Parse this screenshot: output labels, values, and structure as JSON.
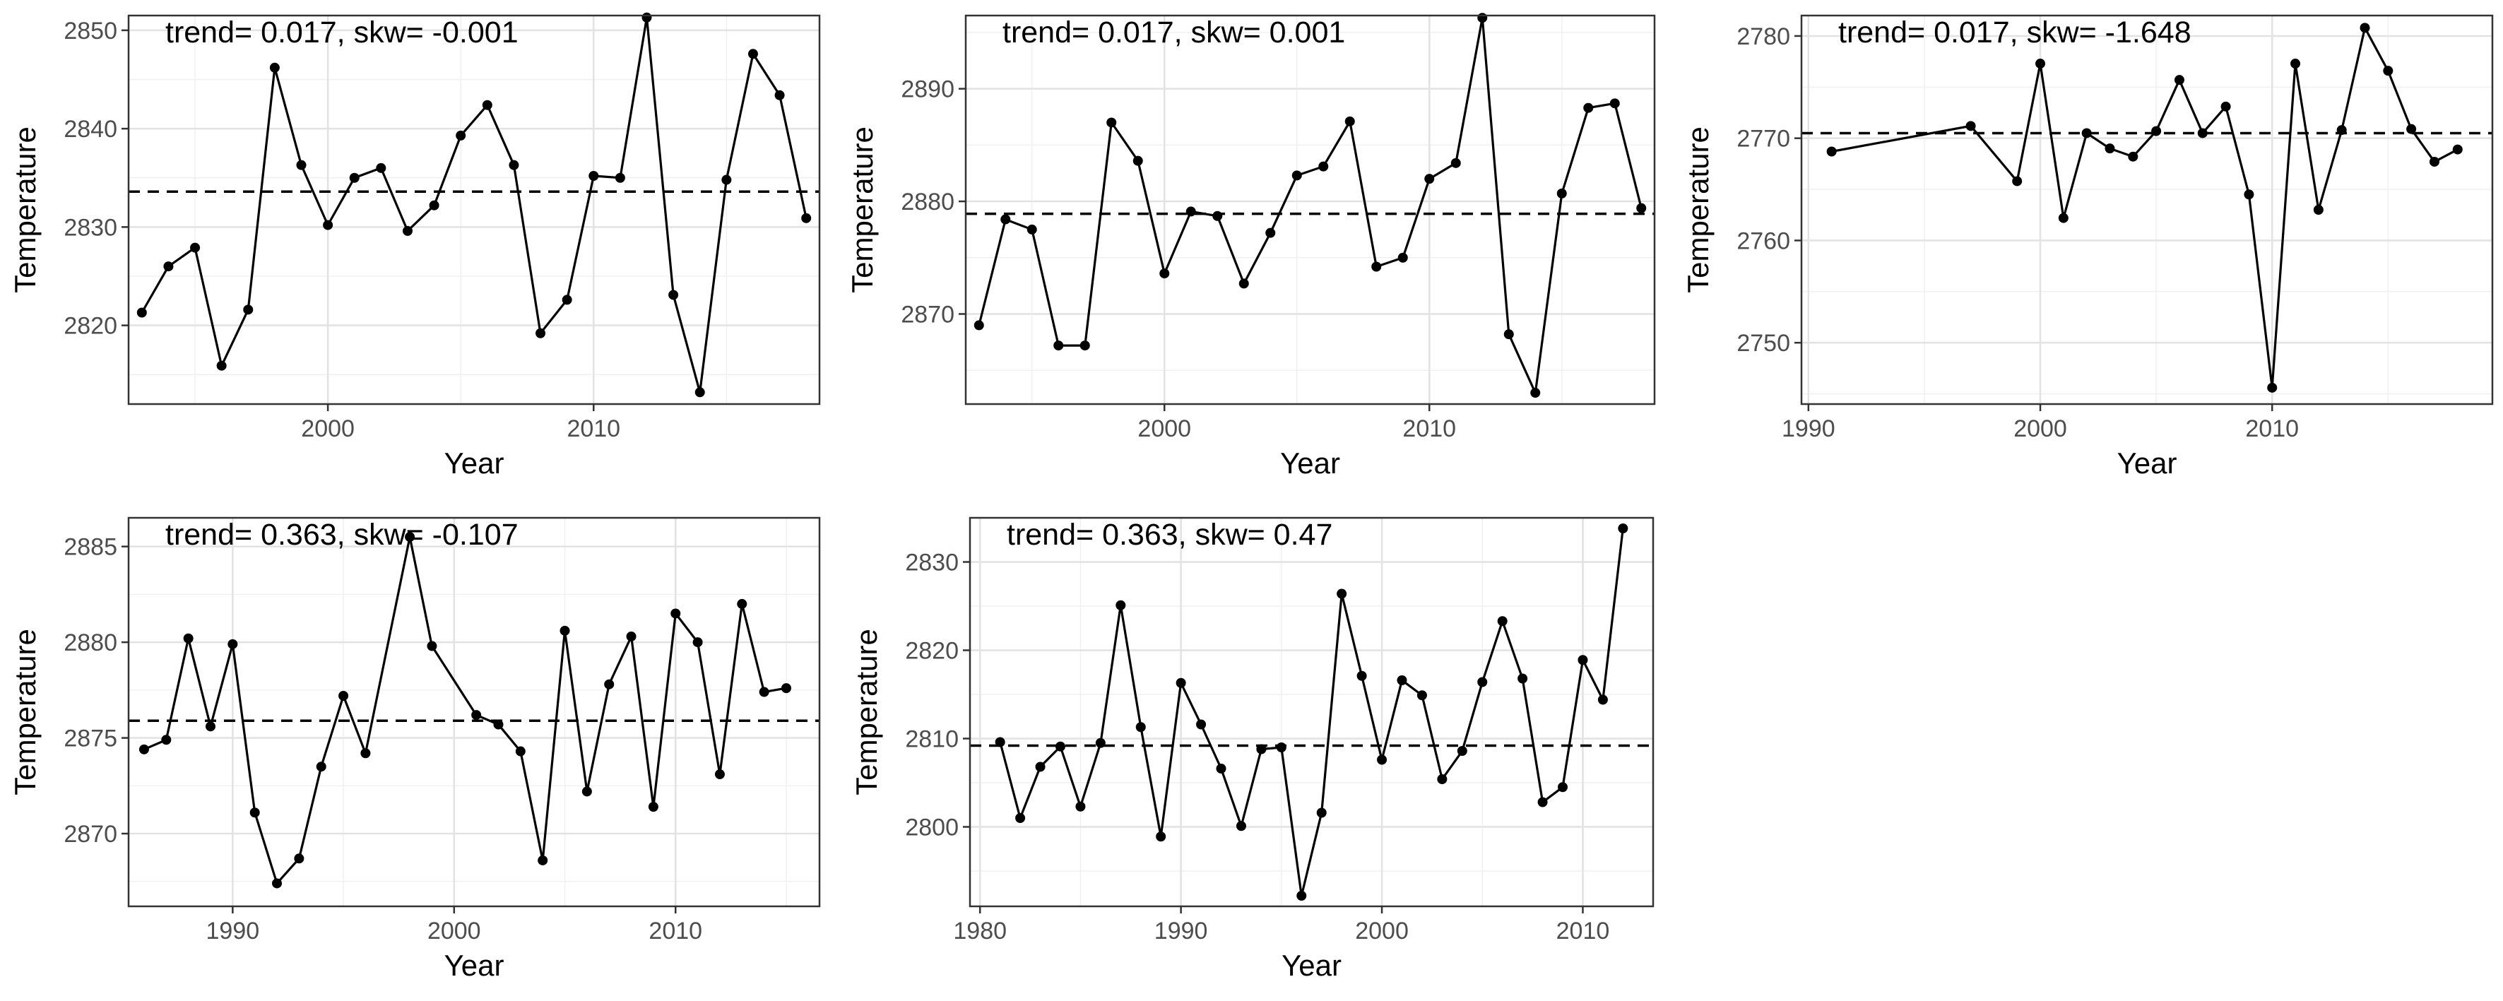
{
  "chart_data": [
    {
      "type": "line",
      "annotation": "trend= 0.017, skw= -0.001",
      "xlabel": "Year",
      "ylabel": "Temperature",
      "xlim": [
        1992.5,
        2018.5
      ],
      "ylim": [
        2812,
        2851.5
      ],
      "xticks": [
        2000,
        2010
      ],
      "yticks": [
        2820,
        2830,
        2840,
        2850
      ],
      "mean_line": 2833.6,
      "grid": true,
      "x": [
        1993,
        1994,
        1995,
        1996,
        1997,
        1998,
        1999,
        2000,
        2001,
        2002,
        2003,
        2004,
        2005,
        2006,
        2007,
        2008,
        2009,
        2010,
        2011,
        2012,
        2013,
        2014,
        2015,
        2016,
        2017,
        2018
      ],
      "y": [
        2821.3,
        2826.0,
        2827.9,
        2815.9,
        2821.6,
        2846.2,
        2836.3,
        2830.2,
        2835.0,
        2836.0,
        2829.6,
        2832.2,
        2839.3,
        2842.4,
        2836.3,
        2819.2,
        2822.6,
        2835.2,
        2835.0,
        2851.3,
        2823.1,
        2813.2,
        2834.8,
        2847.6,
        2843.4,
        2830.9
      ]
    },
    {
      "type": "line",
      "annotation": "trend= 0.017, skw= 0.001",
      "xlabel": "Year",
      "ylabel": "Temperature",
      "xlim": [
        1992.5,
        2018.5
      ],
      "ylim": [
        2862,
        2896.5
      ],
      "xticks": [
        2000,
        2010
      ],
      "yticks": [
        2870,
        2880,
        2890
      ],
      "mean_line": 2878.9,
      "grid": true,
      "x": [
        1993,
        1994,
        1995,
        1996,
        1997,
        1998,
        1999,
        2000,
        2001,
        2002,
        2003,
        2004,
        2005,
        2006,
        2007,
        2008,
        2009,
        2010,
        2011,
        2012,
        2013,
        2014,
        2015,
        2016,
        2017,
        2018
      ],
      "y": [
        2869.0,
        2878.4,
        2877.5,
        2867.2,
        2867.2,
        2887.0,
        2883.6,
        2873.6,
        2879.1,
        2878.7,
        2872.7,
        2877.2,
        2882.3,
        2883.1,
        2887.1,
        2874.2,
        2875.0,
        2882.0,
        2883.4,
        2896.3,
        2868.2,
        2863.0,
        2880.7,
        2888.3,
        2888.7,
        2879.4
      ]
    },
    {
      "type": "line",
      "annotation": "trend= 0.017, skw= -1.648",
      "xlabel": "Year",
      "ylabel": "Temperature",
      "xlim": [
        1989.7,
        2019.5
      ],
      "ylim": [
        2744,
        2782
      ],
      "xticks": [
        1990,
        2000,
        2010
      ],
      "yticks": [
        2750,
        2760,
        2770,
        2780
      ],
      "mean_line": 2770.5,
      "grid": true,
      "x": [
        1991,
        1997,
        1999,
        2000,
        2001,
        2002,
        2003,
        2004,
        2005,
        2006,
        2007,
        2008,
        2009,
        2010,
        2011,
        2012,
        2013,
        2014,
        2015,
        2016,
        2017,
        2018
      ],
      "y": [
        2768.7,
        2771.2,
        2765.8,
        2777.3,
        2762.2,
        2770.5,
        2769.0,
        2768.2,
        2770.7,
        2775.7,
        2770.5,
        2773.1,
        2764.5,
        2745.6,
        2777.3,
        2763.0,
        2770.8,
        2780.8,
        2776.6,
        2770.9,
        2767.7,
        2768.9
      ]
    },
    {
      "type": "line",
      "annotation": "trend= 0.363, skw= -0.107",
      "xlabel": "Year",
      "ylabel": "Temperature",
      "xlim": [
        1985.3,
        2016.5
      ],
      "ylim": [
        2866.2,
        2886.5
      ],
      "xticks": [
        1990,
        2000,
        2010
      ],
      "yticks": [
        2870,
        2875,
        2880,
        2885
      ],
      "mean_line": 2875.9,
      "grid": true,
      "x": [
        1986,
        1987,
        1988,
        1989,
        1990,
        1991,
        1992,
        1993,
        1994,
        1995,
        1996,
        1998,
        1999,
        2001,
        2002,
        2003,
        2004,
        2005,
        2006,
        2007,
        2008,
        2009,
        2010,
        2011,
        2012,
        2013,
        2014,
        2015
      ],
      "y": [
        2874.4,
        2874.9,
        2880.2,
        2875.6,
        2879.9,
        2871.1,
        2867.4,
        2868.7,
        2873.5,
        2877.2,
        2874.2,
        2885.5,
        2879.8,
        2876.2,
        2875.7,
        2874.3,
        2868.6,
        2880.6,
        2872.2,
        2877.8,
        2880.3,
        2871.4,
        2881.5,
        2880.0,
        2873.1,
        2882.0,
        2877.4,
        2877.6
      ]
    },
    {
      "type": "line",
      "annotation": "trend= 0.363, skw= 0.47",
      "xlabel": "Year",
      "ylabel": "Temperature",
      "xlim": [
        1979.5,
        2013.5
      ],
      "ylim": [
        2791,
        2835
      ],
      "xticks": [
        1980,
        1990,
        2000,
        2010
      ],
      "yticks": [
        2800,
        2810,
        2820,
        2830
      ],
      "mean_line": 2809.2,
      "grid": true,
      "x": [
        1981,
        1982,
        1983,
        1984,
        1985,
        1986,
        1987,
        1988,
        1989,
        1990,
        1991,
        1992,
        1993,
        1994,
        1995,
        1996,
        1997,
        1998,
        1999,
        2000,
        2001,
        2002,
        2003,
        2004,
        2005,
        2006,
        2007,
        2008,
        2009,
        2010,
        2011,
        2012
      ],
      "y": [
        2809.6,
        2801.0,
        2806.8,
        2809.1,
        2802.3,
        2809.5,
        2825.1,
        2811.3,
        2798.9,
        2816.3,
        2811.6,
        2806.6,
        2800.1,
        2808.8,
        2809.0,
        2792.2,
        2801.6,
        2826.4,
        2817.1,
        2807.6,
        2816.6,
        2814.9,
        2805.4,
        2808.6,
        2816.4,
        2823.3,
        2816.8,
        2802.8,
        2804.5,
        2818.9,
        2814.4,
        2833.8
      ]
    }
  ]
}
